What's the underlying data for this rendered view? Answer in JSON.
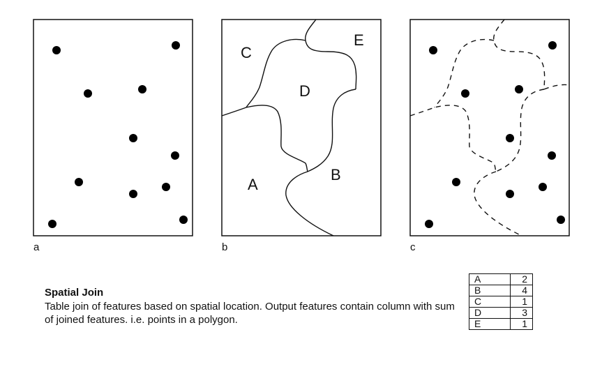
{
  "panels": [
    {
      "id": "a",
      "label": "a"
    },
    {
      "id": "b",
      "label": "b",
      "regions": [
        "C",
        "E",
        "D",
        "A",
        "B"
      ]
    },
    {
      "id": "c",
      "label": "c"
    }
  ],
  "caption": {
    "title": "Spatial Join",
    "text": "Table join of features based on spatial location. Output features contain column with sum of joined features. i.e. points in a polygon."
  },
  "join_table": [
    {
      "key": "A",
      "value": "2"
    },
    {
      "key": "B",
      "value": "4"
    },
    {
      "key": "C",
      "value": "1"
    },
    {
      "key": "D",
      "value": "3"
    },
    {
      "key": "E",
      "value": "1"
    }
  ]
}
